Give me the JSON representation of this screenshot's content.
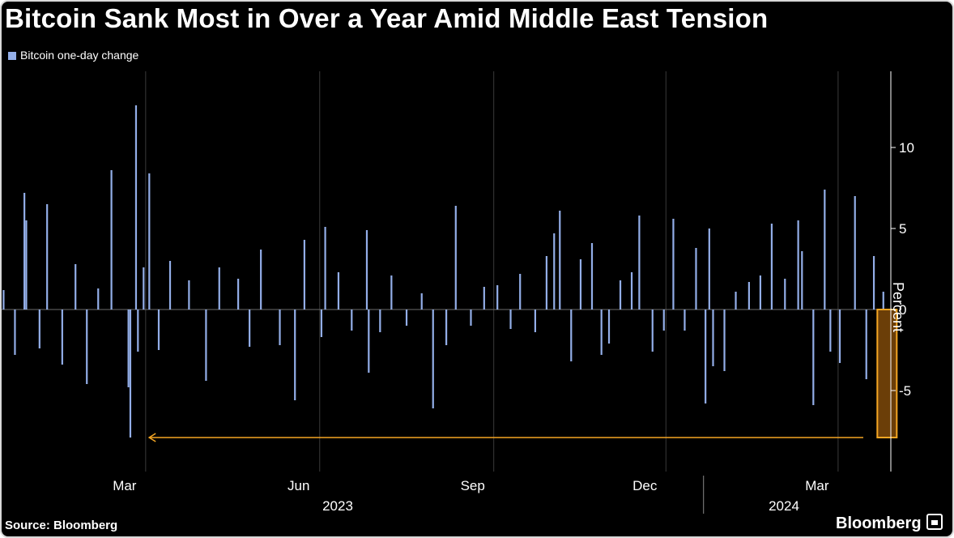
{
  "header": {
    "title": "Bitcoin Sank Most in Over a Year Amid Middle East Tension"
  },
  "footer": {
    "source": "Source: Bloomberg",
    "brand": "Bloomberg"
  },
  "colors": {
    "background": "#000000",
    "bars": "#93aee8",
    "highlight": "#f5a623",
    "grid": "#3a3a3a",
    "text": "#ffffff"
  },
  "chart_data": {
    "type": "bar",
    "title": "Bitcoin Sank Most in Over a Year Amid Middle East Tension",
    "ylabel": "Percent",
    "xlabel": "",
    "legend": {
      "entries": [
        "Bitcoin one-day change"
      ],
      "placement": "top-left"
    },
    "ylim": [
      -10,
      15
    ],
    "yticks": [
      -5,
      0,
      5,
      10
    ],
    "ytick_labels": [
      "-5",
      "0",
      "5",
      "10"
    ],
    "x_range": [
      "2023-01-01",
      "2024-04-15"
    ],
    "xticks": [
      "2023-03-01",
      "2023-06-01",
      "2023-09-01",
      "2023-12-01",
      "2024-03-01"
    ],
    "xtick_labels": [
      "Mar",
      "Jun",
      "Sep",
      "Dec",
      "Mar"
    ],
    "year_labels": [
      {
        "date": "2023-07-01",
        "label": "2023"
      },
      {
        "date": "2024-03-01",
        "label": "2024"
      }
    ],
    "grid": {
      "vertical": true,
      "horizontal": false
    },
    "series": [
      {
        "name": "Bitcoin one-day change",
        "x": [
          "2023-01-02",
          "2023-01-08",
          "2023-01-13",
          "2023-01-14",
          "2023-01-21",
          "2023-01-25",
          "2023-02-02",
          "2023-02-09",
          "2023-02-15",
          "2023-02-21",
          "2023-02-28",
          "2023-03-09",
          "2023-03-10",
          "2023-03-13",
          "2023-03-14",
          "2023-03-17",
          "2023-03-20",
          "2023-03-25",
          "2023-03-31",
          "2023-04-10",
          "2023-04-19",
          "2023-04-26",
          "2023-05-06",
          "2023-05-12",
          "2023-05-18",
          "2023-05-28",
          "2023-06-05",
          "2023-06-10",
          "2023-06-19",
          "2023-06-21",
          "2023-06-28",
          "2023-07-05",
          "2023-07-13",
          "2023-07-14",
          "2023-07-20",
          "2023-07-26",
          "2023-08-03",
          "2023-08-11",
          "2023-08-17",
          "2023-08-24",
          "2023-08-29",
          "2023-09-06",
          "2023-09-13",
          "2023-09-20",
          "2023-09-27",
          "2023-10-02",
          "2023-10-10",
          "2023-10-16",
          "2023-10-20",
          "2023-10-23",
          "2023-10-29",
          "2023-11-03",
          "2023-11-09",
          "2023-11-14",
          "2023-11-18",
          "2023-11-24",
          "2023-11-30",
          "2023-12-04",
          "2023-12-11",
          "2023-12-17",
          "2023-12-22",
          "2023-12-28",
          "2024-01-03",
          "2024-01-08",
          "2024-01-10",
          "2024-01-12",
          "2024-01-18",
          "2024-01-24",
          "2024-01-31",
          "2024-02-06",
          "2024-02-12",
          "2024-02-19",
          "2024-02-26",
          "2024-02-28",
          "2024-03-05",
          "2024-03-11",
          "2024-03-14",
          "2024-03-19",
          "2024-03-27",
          "2024-04-02",
          "2024-04-06",
          "2024-04-11",
          "2024-04-13"
        ],
        "values": [
          1.2,
          -2.8,
          7.2,
          5.5,
          -2.4,
          6.5,
          -3.4,
          2.8,
          -4.6,
          1.3,
          8.6,
          -4.8,
          -7.9,
          12.6,
          -2.6,
          2.6,
          8.4,
          -2.5,
          3.0,
          1.8,
          -4.4,
          2.6,
          1.9,
          -2.3,
          3.7,
          -2.2,
          -5.6,
          4.3,
          -1.7,
          5.1,
          2.3,
          -1.3,
          4.9,
          -3.9,
          -1.4,
          2.1,
          -1.0,
          1.0,
          -6.1,
          -2.2,
          6.4,
          -1.0,
          1.4,
          1.5,
          -1.2,
          2.2,
          -1.4,
          3.3,
          4.7,
          6.1,
          -3.2,
          3.1,
          4.1,
          -2.8,
          -2.1,
          1.8,
          2.3,
          5.8,
          -2.6,
          -1.3,
          5.6,
          -1.3,
          3.8,
          -5.8,
          5.0,
          -3.5,
          -3.8,
          1.1,
          1.7,
          2.1,
          5.3,
          1.9,
          5.5,
          3.6,
          -5.9,
          7.4,
          -2.6,
          -3.3,
          7.0,
          -4.3,
          3.3,
          1.1,
          -7.9
        ]
      }
    ],
    "annotations": [
      {
        "type": "highlight",
        "x": "2024-04-13",
        "value": -7.9
      },
      {
        "type": "arrow",
        "from_x": "2024-04-09",
        "to_x": "2023-03-14",
        "value": -7.9
      }
    ]
  }
}
